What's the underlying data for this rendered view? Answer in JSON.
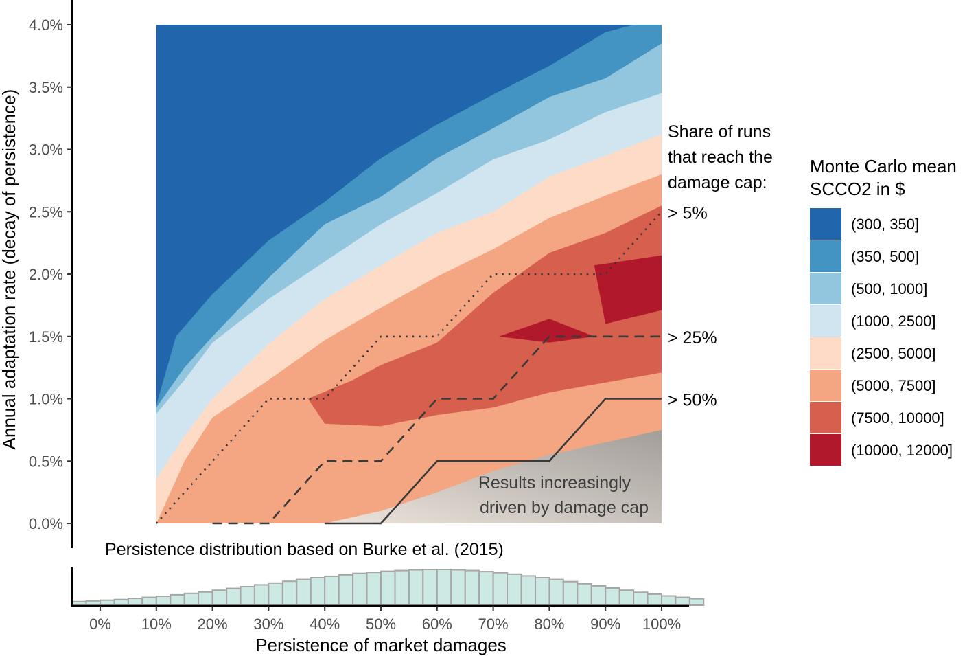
{
  "chart_data": {
    "type": "contour",
    "title": "",
    "xlabel": "Persistence of market damages",
    "ylabel": "Annual adaptation rate (decay of persistence)",
    "x_ticks": [
      "0%",
      "10%",
      "20%",
      "30%",
      "40%",
      "50%",
      "60%",
      "70%",
      "80%",
      "90%",
      "100%"
    ],
    "y_ticks": [
      "0.0%",
      "0.5%",
      "1.0%",
      "1.5%",
      "2.0%",
      "2.5%",
      "3.0%",
      "3.5%",
      "4.0%"
    ],
    "xlim": [
      -0.05,
      1.05
    ],
    "ylim": [
      0,
      4.0
    ],
    "plot_xrange": [
      0.1,
      1.0
    ],
    "legend": {
      "title_line1": "Monte Carlo mean",
      "title_line2": "SCCO2 in $",
      "position": "right",
      "entries": [
        {
          "label": "(300, 350]",
          "color": "#2166ac"
        },
        {
          "label": "(350, 500]",
          "color": "#4393c3"
        },
        {
          "label": "(500, 1000]",
          "color": "#92c5de"
        },
        {
          "label": "(1000, 2500]",
          "color": "#d1e5f0"
        },
        {
          "label": "(2500, 5000]",
          "color": "#fddbc7"
        },
        {
          "label": "(5000, 7500]",
          "color": "#f4a582"
        },
        {
          "label": "(7500, 10000]",
          "color": "#d6604d"
        },
        {
          "label": "(10000, 12000]",
          "color": "#b2182b"
        }
      ]
    },
    "boundaries": [
      {
        "name": "350",
        "points": [
          [
            0.1,
            0.95
          ],
          [
            0.135,
            1.5
          ],
          [
            0.2,
            1.84
          ],
          [
            0.3,
            2.27
          ],
          [
            0.4,
            2.58
          ],
          [
            0.5,
            2.93
          ],
          [
            0.6,
            3.2
          ],
          [
            0.7,
            3.44
          ],
          [
            0.8,
            3.67
          ],
          [
            0.9,
            3.94
          ],
          [
            0.95,
            4.0
          ]
        ]
      },
      {
        "name": "500",
        "points": [
          [
            0.1,
            0.93
          ],
          [
            0.15,
            1.25
          ],
          [
            0.2,
            1.5
          ],
          [
            0.3,
            1.97
          ],
          [
            0.4,
            2.4
          ],
          [
            0.5,
            2.62
          ],
          [
            0.6,
            2.93
          ],
          [
            0.7,
            3.17
          ],
          [
            0.8,
            3.42
          ],
          [
            0.9,
            3.57
          ],
          [
            1.0,
            3.85
          ]
        ]
      },
      {
        "name": "1000",
        "points": [
          [
            0.1,
            0.88
          ],
          [
            0.15,
            1.15
          ],
          [
            0.2,
            1.45
          ],
          [
            0.3,
            1.8
          ],
          [
            0.4,
            2.1
          ],
          [
            0.5,
            2.4
          ],
          [
            0.6,
            2.65
          ],
          [
            0.7,
            2.92
          ],
          [
            0.8,
            3.08
          ],
          [
            0.9,
            3.3
          ],
          [
            1.0,
            3.45
          ]
        ]
      },
      {
        "name": "2500",
        "points": [
          [
            0.1,
            0.36
          ],
          [
            0.15,
            0.7
          ],
          [
            0.2,
            1.0
          ],
          [
            0.3,
            1.44
          ],
          [
            0.4,
            1.8
          ],
          [
            0.5,
            2.07
          ],
          [
            0.6,
            2.33
          ],
          [
            0.7,
            2.5
          ],
          [
            0.8,
            2.78
          ],
          [
            0.9,
            2.95
          ],
          [
            1.0,
            3.12
          ]
        ]
      },
      {
        "name": "5000",
        "points": [
          [
            0.1,
            0.0
          ],
          [
            0.12,
            0.2
          ],
          [
            0.15,
            0.5
          ],
          [
            0.2,
            0.85
          ],
          [
            0.3,
            1.15
          ],
          [
            0.4,
            1.47
          ],
          [
            0.5,
            1.73
          ],
          [
            0.6,
            1.98
          ],
          [
            0.7,
            2.2
          ],
          [
            0.8,
            2.45
          ],
          [
            0.9,
            2.63
          ],
          [
            1.0,
            2.8
          ]
        ]
      }
    ],
    "regions": [
      {
        "name": "7500-10000",
        "value": "(7500, 10000]",
        "points": [
          [
            0.37,
            1.0
          ],
          [
            0.45,
            1.15
          ],
          [
            0.5,
            1.27
          ],
          [
            0.6,
            1.45
          ],
          [
            0.7,
            1.85
          ],
          [
            0.8,
            2.17
          ],
          [
            0.9,
            2.33
          ],
          [
            1.0,
            2.55
          ],
          [
            1.0,
            1.21
          ],
          [
            0.9,
            1.13
          ],
          [
            0.8,
            1.05
          ],
          [
            0.7,
            0.93
          ],
          [
            0.6,
            0.87
          ],
          [
            0.5,
            0.78
          ],
          [
            0.4,
            0.8
          ]
        ]
      },
      {
        "name": "10000-12000-a",
        "value": "(10000, 12000]",
        "points": [
          [
            0.88,
            2.07
          ],
          [
            1.0,
            2.15
          ],
          [
            1.0,
            1.71
          ],
          [
            0.9,
            1.6
          ]
        ]
      },
      {
        "name": "10000-12000-b",
        "value": "(10000, 12000]",
        "points": [
          [
            0.71,
            1.5
          ],
          [
            0.8,
            1.64
          ],
          [
            0.88,
            1.5
          ],
          [
            0.8,
            1.45
          ]
        ]
      },
      {
        "name": "cap-shading",
        "value": "Results increasingly driven by damage cap",
        "points": [
          [
            0.4,
            0.0
          ],
          [
            0.5,
            0.1
          ],
          [
            0.6,
            0.25
          ],
          [
            0.7,
            0.42
          ],
          [
            0.8,
            0.55
          ],
          [
            0.9,
            0.65
          ],
          [
            1.0,
            0.75
          ],
          [
            1.0,
            0.0
          ]
        ]
      }
    ],
    "cap_lines": {
      "title_line1": "Share of runs",
      "title_line2": "that reach the",
      "title_line3": "damage cap:",
      "series": [
        {
          "name": "dotted",
          "label": "> 5%",
          "style": "dotted",
          "points": [
            [
              0.1,
              0.0
            ],
            [
              0.2,
              0.5
            ],
            [
              0.3,
              1.0
            ],
            [
              0.4,
              1.0
            ],
            [
              0.5,
              1.5
            ],
            [
              0.6,
              1.5
            ],
            [
              0.7,
              2.0
            ],
            [
              0.8,
              2.0
            ],
            [
              0.9,
              2.0
            ],
            [
              1.0,
              2.5
            ]
          ]
        },
        {
          "name": "dashed",
          "label": "> 25%",
          "style": "dashed",
          "points": [
            [
              0.2,
              0.0
            ],
            [
              0.3,
              0.0
            ],
            [
              0.4,
              0.5
            ],
            [
              0.5,
              0.5
            ],
            [
              0.6,
              1.0
            ],
            [
              0.7,
              1.0
            ],
            [
              0.8,
              1.5
            ],
            [
              0.9,
              1.5
            ],
            [
              1.0,
              1.5
            ]
          ]
        },
        {
          "name": "solid",
          "label": "> 50%",
          "style": "solid",
          "points": [
            [
              0.4,
              0.0
            ],
            [
              0.5,
              0.0
            ],
            [
              0.6,
              0.5
            ],
            [
              0.7,
              0.5
            ],
            [
              0.8,
              0.5
            ],
            [
              0.9,
              1.0
            ],
            [
              1.0,
              1.0
            ]
          ]
        }
      ]
    },
    "annotation_line1": "Results increasingly",
    "annotation_line2": "driven by damage cap",
    "histogram": {
      "title": "Persistence distribution based on Burke et al. (2015)",
      "bin_width": 0.025,
      "bin_start": -0.05,
      "values": [
        0.1,
        0.12,
        0.14,
        0.16,
        0.19,
        0.22,
        0.25,
        0.29,
        0.33,
        0.37,
        0.42,
        0.47,
        0.52,
        0.57,
        0.62,
        0.67,
        0.72,
        0.77,
        0.81,
        0.85,
        0.89,
        0.92,
        0.95,
        0.97,
        0.99,
        1.0,
        1.0,
        0.99,
        0.97,
        0.94,
        0.91,
        0.87,
        0.82,
        0.77,
        0.72,
        0.66,
        0.6,
        0.54,
        0.48,
        0.42,
        0.36,
        0.31,
        0.26,
        0.22,
        0.18
      ]
    }
  }
}
